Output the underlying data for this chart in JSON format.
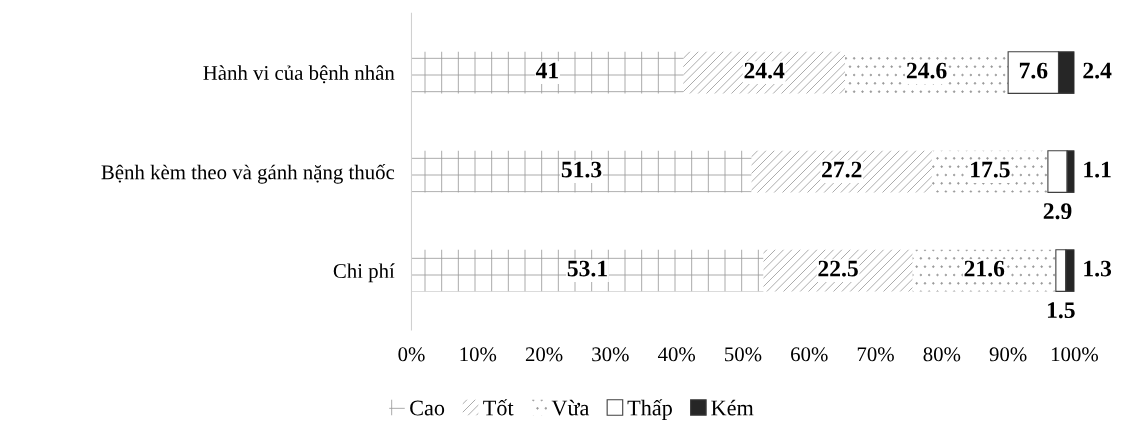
{
  "chart_data": {
    "type": "bar",
    "orientation": "horizontal",
    "stacked": true,
    "categories": [
      "Hành vi của bệnh nhân",
      "Bệnh kèm theo và gánh nặng thuốc",
      "Chi phí"
    ],
    "series": [
      {
        "name": "Cao",
        "color": "#ffffff",
        "values": [
          41,
          51.3,
          53.1
        ]
      },
      {
        "name": "Tốt",
        "color": "#ffffff",
        "values": [
          24.4,
          27.2,
          22.5
        ]
      },
      {
        "name": "Vừa",
        "color": "#ffffff",
        "values": [
          24.6,
          17.5,
          21.6
        ]
      },
      {
        "name": "Thấp",
        "color": "#ffffff",
        "values": [
          7.6,
          2.9,
          1.5
        ]
      },
      {
        "name": "Kém",
        "color": "#262626",
        "values": [
          2.4,
          1.1,
          1.3
        ]
      }
    ],
    "xlim": [
      0,
      100
    ],
    "xticks": [
      {
        "value": 0,
        "label": "0%"
      },
      {
        "value": 10,
        "label": "10%"
      },
      {
        "value": 20,
        "label": "20%"
      },
      {
        "value": 30,
        "label": "30%"
      },
      {
        "value": 40,
        "label": "40%"
      },
      {
        "value": 50,
        "label": "50%"
      },
      {
        "value": 60,
        "label": "60%"
      },
      {
        "value": 70,
        "label": "70%"
      },
      {
        "value": 80,
        "label": "80%"
      },
      {
        "value": 90,
        "label": "90%"
      },
      {
        "value": 100,
        "label": "100%"
      }
    ],
    "data_labels": true,
    "legend": "bottom",
    "grid": false
  }
}
